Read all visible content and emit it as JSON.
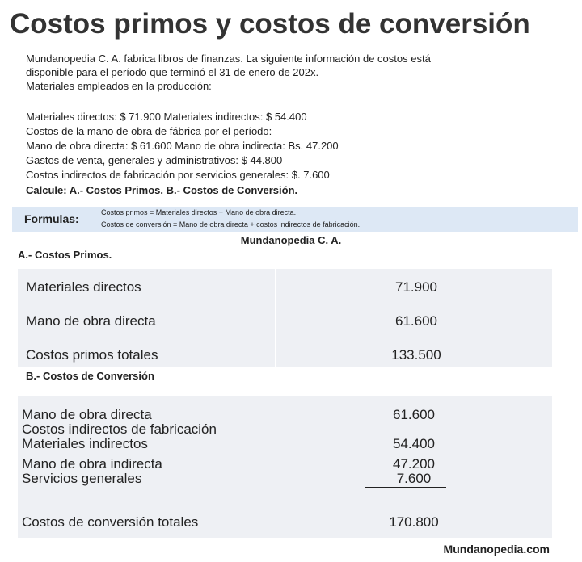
{
  "title": "Costos primos y costos de conversión",
  "intro": [
    "Mundanopedia C. A. fabrica libros de finanzas. La siguiente información de costos está",
    "disponible para el período que terminó el 31 de enero de 202x.",
    "Materiales empleados en la producción:"
  ],
  "details": [
    "Materiales directos: $ 71.900 Materiales indirectos: $ 54.400",
    "Costos de la mano de obra de fábrica por el período:",
    "Mano de obra directa: $ 61.600 Mano de obra indirecta: Bs. 47.200",
    "Gastos de venta, generales y administrativos: $ 44.800",
    "Costos indirectos de fabricación por servicios generales: $. 7.600"
  ],
  "calculate": "Calcule:  A.- Costos Primos.  B.- Costos de Conversión.",
  "formulas": {
    "label": "Formulas:",
    "lines": [
      "Costos primos = Materiales directos + Mano de obra directa.",
      "Costos de conversión = Mano de obra directa + costos indirectos de fabricación."
    ]
  },
  "company": "Mundanopedia C. A.",
  "section_a": {
    "title": "A.- Costos Primos.",
    "rows": [
      [
        "Materiales directos",
        "71.900"
      ],
      [
        "Mano de obra directa",
        "61.600"
      ],
      [
        "Costos primos totales",
        "133.500"
      ]
    ]
  },
  "section_b": {
    "title": "B.- Costos de Conversión",
    "rows": [
      [
        "Mano de obra directa",
        "61.600"
      ],
      [
        "Costos indirectos de fabricación",
        null
      ],
      [
        "Materiales indirectos",
        "54.400"
      ],
      [
        "Mano de obra indirecta",
        "47.200"
      ],
      [
        "Servicios generales",
        "7.600"
      ],
      [
        "Costos de conversión totales",
        "170.800"
      ]
    ]
  },
  "footer": "Mundanopedia.com"
}
